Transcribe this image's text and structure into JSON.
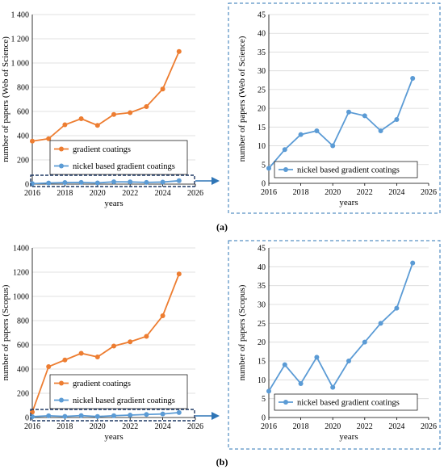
{
  "panel_labels": {
    "a": "(a)",
    "b": "(b)"
  },
  "colors": {
    "gradient": "#ED7D31",
    "nickel": "#5B9BD5",
    "frame": "#2E75B6"
  },
  "chart_data": [
    {
      "id": "a_full",
      "type": "line",
      "xlabel": "years",
      "ylabel": "number of papers (Web of Science)",
      "xlim": [
        2016,
        2026
      ],
      "xticks": [
        2016,
        2018,
        2020,
        2022,
        2024,
        2026
      ],
      "ylim": [
        0,
        1400
      ],
      "yticks": [
        0,
        200,
        400,
        600,
        800,
        1000,
        1200,
        1400
      ],
      "ytick_labels": [
        "0",
        "200",
        "400",
        "600",
        "800",
        "1 000",
        "1 200",
        "1 400"
      ],
      "legend": "inside",
      "series": [
        {
          "name": "gradient coatings",
          "x": [
            2016,
            2017,
            2018,
            2019,
            2020,
            2021,
            2022,
            2023,
            2024,
            2025
          ],
          "values": [
            355,
            375,
            490,
            540,
            485,
            575,
            590,
            640,
            785,
            1095
          ]
        },
        {
          "name": "nickel based gradient coatings",
          "x": [
            2016,
            2017,
            2018,
            2019,
            2020,
            2021,
            2022,
            2023,
            2024,
            2025
          ],
          "values": [
            4,
            9,
            13,
            14,
            10,
            19,
            18,
            14,
            17,
            28
          ]
        }
      ]
    },
    {
      "id": "a_zoom",
      "type": "line",
      "xlabel": "years",
      "ylabel": "number of papers (Web of Science)",
      "xlim": [
        2016,
        2026
      ],
      "xticks": [
        2016,
        2018,
        2020,
        2022,
        2024,
        2026
      ],
      "ylim": [
        0,
        45
      ],
      "yticks": [
        0,
        5,
        10,
        15,
        20,
        25,
        30,
        35,
        40,
        45
      ],
      "ytick_labels": [
        "0",
        "5",
        "10",
        "15",
        "20",
        "25",
        "30",
        "35",
        "40",
        "45"
      ],
      "legend": "inside",
      "series": [
        {
          "name": "nickel based gradient coatings",
          "x": [
            2016,
            2017,
            2018,
            2019,
            2020,
            2021,
            2022,
            2023,
            2024,
            2025
          ],
          "values": [
            4,
            9,
            13,
            14,
            10,
            19,
            18,
            14,
            17,
            28
          ]
        }
      ]
    },
    {
      "id": "b_full",
      "type": "line",
      "xlabel": "years",
      "ylabel": "number of papers (Scopus)",
      "xlim": [
        2016,
        2026
      ],
      "xticks": [
        2016,
        2018,
        2020,
        2022,
        2024,
        2026
      ],
      "ylim": [
        0,
        1400
      ],
      "yticks": [
        0,
        200,
        400,
        600,
        800,
        1000,
        1200,
        1400
      ],
      "ytick_labels": [
        "0",
        "200",
        "400",
        "600",
        "800",
        "1000",
        "1200",
        "1400"
      ],
      "legend": "inside",
      "series": [
        {
          "name": "gradient coatings",
          "x": [
            2016,
            2017,
            2018,
            2019,
            2020,
            2021,
            2022,
            2023,
            2024,
            2025
          ],
          "values": [
            45,
            420,
            475,
            530,
            500,
            590,
            625,
            670,
            840,
            1185
          ]
        },
        {
          "name": "nickel based gradient coatings",
          "x": [
            2016,
            2017,
            2018,
            2019,
            2020,
            2021,
            2022,
            2023,
            2024,
            2025
          ],
          "values": [
            7,
            14,
            9,
            16,
            8,
            15,
            20,
            25,
            29,
            41
          ]
        }
      ]
    },
    {
      "id": "b_zoom",
      "type": "line",
      "xlabel": "years",
      "ylabel": "number of papers (Scopus)",
      "xlim": [
        2016,
        2026
      ],
      "xticks": [
        2016,
        2018,
        2020,
        2022,
        2024,
        2026
      ],
      "ylim": [
        0,
        45
      ],
      "yticks": [
        0,
        5,
        10,
        15,
        20,
        25,
        30,
        35,
        40,
        45
      ],
      "ytick_labels": [
        "0",
        "5",
        "10",
        "15",
        "20",
        "25",
        "30",
        "35",
        "40",
        "45"
      ],
      "legend": "inside",
      "series": [
        {
          "name": "nickel based gradient coatings",
          "x": [
            2016,
            2017,
            2018,
            2019,
            2020,
            2021,
            2022,
            2023,
            2024,
            2025
          ],
          "values": [
            7,
            14,
            9,
            16,
            8,
            15,
            20,
            25,
            29,
            41
          ]
        }
      ]
    }
  ]
}
